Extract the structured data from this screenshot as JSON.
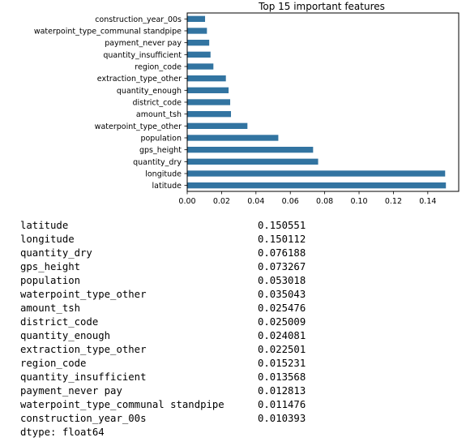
{
  "chart_data": {
    "type": "bar",
    "orientation": "horizontal",
    "title": "Top 15 important features",
    "categories": [
      "latitude",
      "longitude",
      "quantity_dry",
      "gps_height",
      "population",
      "waterpoint_type_other",
      "amount_tsh",
      "district_code",
      "quantity_enough",
      "extraction_type_other",
      "region_code",
      "quantity_insufficient",
      "payment_never pay",
      "waterpoint_type_communal standpipe",
      "construction_year_00s"
    ],
    "values": [
      0.150551,
      0.150112,
      0.076188,
      0.073267,
      0.053018,
      0.035043,
      0.025476,
      0.025009,
      0.024081,
      0.022501,
      0.015231,
      0.013568,
      0.012813,
      0.011476,
      0.010393
    ],
    "xlim": [
      0,
      0.158
    ],
    "xticks": [
      "0.00",
      "0.02",
      "0.04",
      "0.06",
      "0.08",
      "0.10",
      "0.12",
      "0.14"
    ],
    "bar_color": "#3274a1"
  },
  "output": {
    "rows": [
      {
        "name": "latitude",
        "value": "0.150551"
      },
      {
        "name": "longitude",
        "value": "0.150112"
      },
      {
        "name": "quantity_dry",
        "value": "0.076188"
      },
      {
        "name": "gps_height",
        "value": "0.073267"
      },
      {
        "name": "population",
        "value": "0.053018"
      },
      {
        "name": "waterpoint_type_other",
        "value": "0.035043"
      },
      {
        "name": "amount_tsh",
        "value": "0.025476"
      },
      {
        "name": "district_code",
        "value": "0.025009"
      },
      {
        "name": "quantity_enough",
        "value": "0.024081"
      },
      {
        "name": "extraction_type_other",
        "value": "0.022501"
      },
      {
        "name": "region_code",
        "value": "0.015231"
      },
      {
        "name": "quantity_insufficient",
        "value": "0.013568"
      },
      {
        "name": "payment_never pay",
        "value": "0.012813"
      },
      {
        "name": "waterpoint_type_communal standpipe",
        "value": "0.011476"
      },
      {
        "name": "construction_year_00s",
        "value": "0.010393"
      }
    ],
    "dtype": "dtype: float64"
  }
}
